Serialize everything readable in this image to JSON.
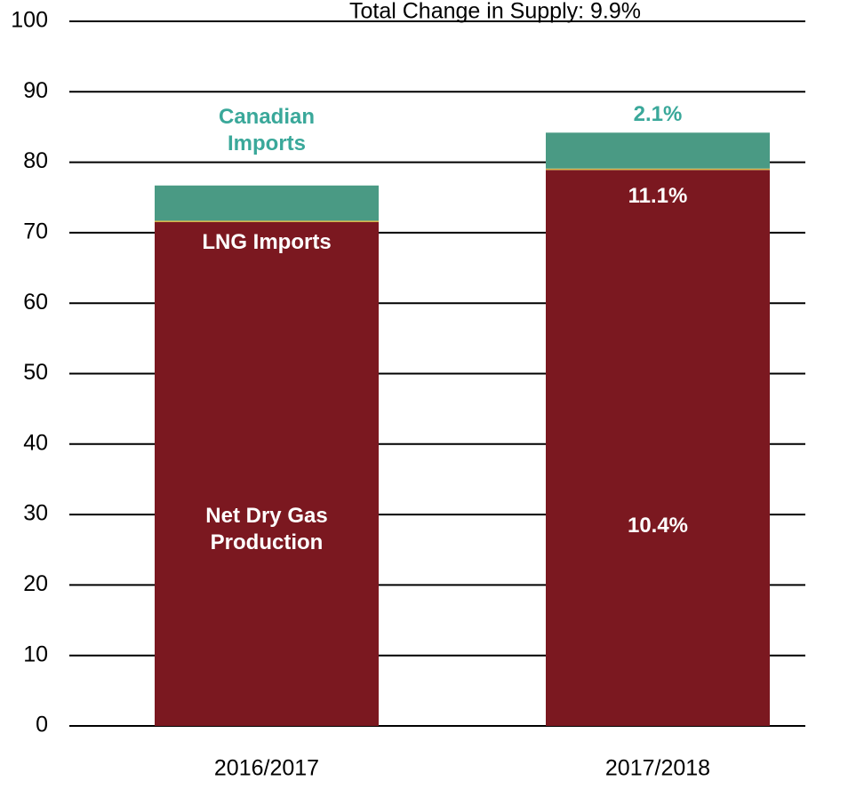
{
  "chart_data": {
    "type": "stacked_bar",
    "title": "Total Change in Supply: 9.9%",
    "categories": [
      "2016/2017",
      "2017/2018"
    ],
    "series": [
      {
        "name": "Net Dry Gas Production",
        "color": "#7b1820",
        "values": [
          71.5,
          78.9
        ],
        "change_label": "10.4%"
      },
      {
        "name": "LNG Imports",
        "color": "#d9b44a",
        "values": [
          0.2,
          0.2
        ],
        "change_label": "11.1%"
      },
      {
        "name": "Canadian Imports",
        "color": "#4a9a84",
        "values": [
          5.0,
          5.1
        ],
        "change_label": "2.1%"
      }
    ],
    "ylim": [
      0,
      100
    ],
    "yticks": [
      0,
      10,
      20,
      30,
      40,
      50,
      60,
      70,
      80,
      90,
      100
    ],
    "grid": true
  }
}
